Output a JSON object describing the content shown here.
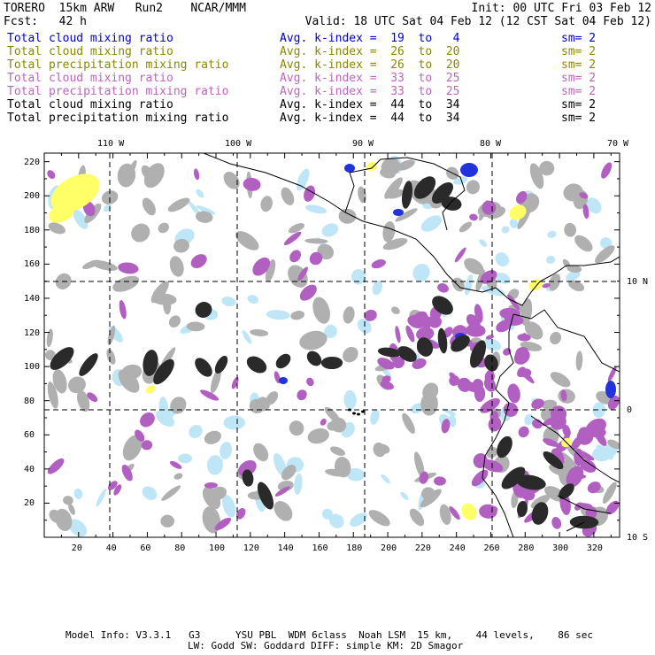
{
  "header": {
    "model": "TORERO  15km ARW   Run2    NCAR/MMM",
    "init": "Init: 00 UTC Fri 03 Feb 12",
    "fcst": "Fcst:   42 h",
    "valid": "Valid: 18 UTC Sat 04 Feb 12 (12 CST Sat 04 Feb 12)"
  },
  "legend_rows": [
    {
      "field": "Total cloud mixing ratio",
      "kindex": "Avg. k-index =  19  to   4",
      "sm": "sm= 2",
      "color": "#0000cc"
    },
    {
      "field": "Total cloud mixing ratio",
      "kindex": "Avg. k-index =  26  to  20",
      "sm": "sm= 2",
      "color": "#888800"
    },
    {
      "field": "Total precipitation mixing ratio",
      "kindex": "Avg. k-index =  26  to  20",
      "sm": "sm= 2",
      "color": "#888800"
    },
    {
      "field": "Total cloud mixing ratio",
      "kindex": "Avg. k-index =  33  to  25",
      "sm": "sm= 2",
      "color": "#bb66bb"
    },
    {
      "field": "Total precipitation mixing ratio",
      "kindex": "Avg. k-index =  33  to  25",
      "sm": "sm= 2",
      "color": "#bb66bb"
    },
    {
      "field": "Total cloud mixing ratio",
      "kindex": "Avg. k-index =  44  to  34",
      "sm": "sm= 2",
      "color": "#000000"
    },
    {
      "field": "Total precipitation mixing ratio",
      "kindex": "Avg. k-index =  44  to  34",
      "sm": "sm= 2",
      "color": "#000000"
    }
  ],
  "map": {
    "longitude_labels": [
      "110 W",
      "100 W",
      "90 W",
      "80 W",
      "70 W"
    ],
    "latitude_labels": [
      "10 N",
      "0",
      "10 S"
    ],
    "x_grid_labels": [
      "20",
      "40",
      "60",
      "80",
      "100",
      "120",
      "140",
      "160",
      "180",
      "200",
      "220",
      "240",
      "260",
      "280",
      "300",
      "320"
    ],
    "y_grid_labels": [
      "220",
      "200",
      "180",
      "160",
      "140",
      "120",
      "100",
      "80",
      "60",
      "40",
      "20"
    ],
    "colors": {
      "light_blue": "#bfe6f7",
      "blue": "#2233dd",
      "yellow": "#ffff66",
      "magenta": "#b15fc0",
      "gray": "#b0b0b0",
      "dark": "#2a2a2a"
    }
  },
  "footer": {
    "line1": "Model Info: V3.3.1   G3      YSU PBL  WDM 6class  Noah LSM  15 km,    44 levels,    86 sec",
    "line2": "LW: Godd SW: Goddard DIFF: simple KM: 2D Smagor"
  }
}
